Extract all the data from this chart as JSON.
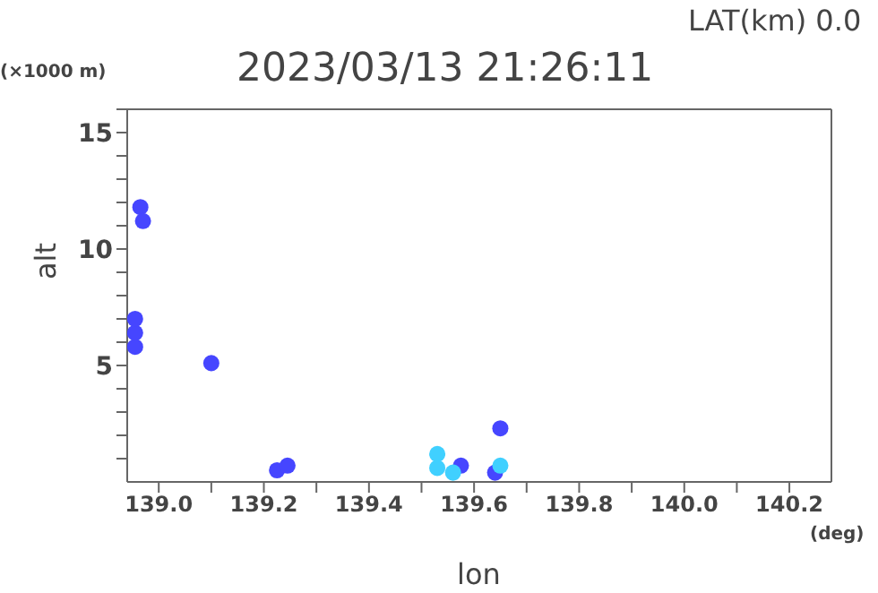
{
  "chart_data": {
    "type": "scatter",
    "title": "2023/03/13 21:26:11",
    "xlabel": "lon",
    "ylabel": "alt",
    "annotations": [
      "LAT(km) 0.0",
      "(×1000 m)",
      "(deg)"
    ],
    "series": [
      {
        "color": "#4646ff",
        "x": [
          138.955,
          138.955,
          138.955,
          138.965,
          138.97,
          139.1,
          139.225,
          139.245,
          139.575,
          139.65,
          139.64
        ],
        "values": [
          5.8,
          6.4,
          7.0,
          11.8,
          11.2,
          5.1,
          0.5,
          0.7,
          0.7,
          2.3,
          0.4
        ]
      },
      {
        "color": "#40d0ff",
        "x": [
          139.53,
          139.53,
          139.56,
          139.65
        ],
        "values": [
          0.6,
          1.2,
          0.4,
          0.7
        ]
      }
    ],
    "xlim": [
      138.94,
      140.28
    ],
    "xticks": [
      {
        "value": 139,
        "label": "139.0"
      },
      {
        "value": 139.1,
        "label": null
      },
      {
        "value": 139.2,
        "label": "139.2"
      },
      {
        "value": 139.3,
        "label": null
      },
      {
        "value": 139.4,
        "label": "139.4"
      },
      {
        "value": 139.5,
        "label": null
      },
      {
        "value": 139.6,
        "label": "139.6"
      },
      {
        "value": 139.7,
        "label": null
      },
      {
        "value": 139.8,
        "label": "139.8"
      },
      {
        "value": 139.9,
        "label": null
      },
      {
        "value": 140,
        "label": "140.0"
      },
      {
        "value": 140.1,
        "label": null
      },
      {
        "value": 140.2,
        "label": "140.2"
      }
    ],
    "ylim": [
      0,
      16
    ],
    "yticks": [
      {
        "value": 1,
        "label": null
      },
      {
        "value": 2,
        "label": null
      },
      {
        "value": 3,
        "label": null
      },
      {
        "value": 4,
        "label": null
      },
      5,
      {
        "value": 6,
        "label": null
      },
      {
        "value": 7,
        "label": null
      },
      {
        "value": 8,
        "label": null
      },
      {
        "value": 9,
        "label": null
      },
      10,
      {
        "value": 11,
        "label": null
      },
      {
        "value": 12,
        "label": null
      },
      {
        "value": 13,
        "label": null
      },
      {
        "value": 14,
        "label": null
      },
      15,
      {
        "value": 16,
        "label": null
      }
    ],
    "grid": false,
    "marker": "circle"
  }
}
